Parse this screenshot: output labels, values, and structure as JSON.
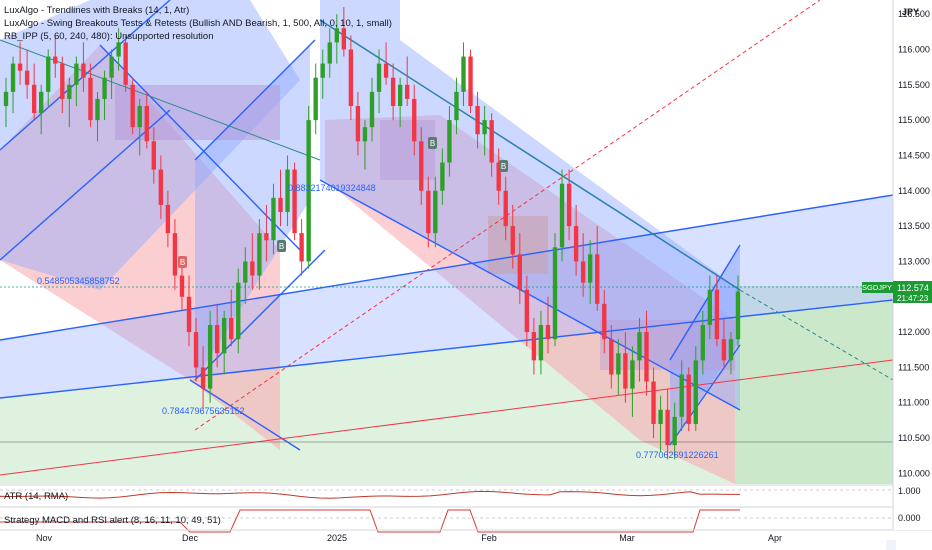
{
  "currency_label": "JPY",
  "symbol_tag": "SGDJPY",
  "last_price_label": "112.574",
  "countdown_label": "21:47:23",
  "indicators": [
    "LuxAlgo - Trendlines with Breaks (14, 1, Atr)",
    "LuxAlgo - Swing Breakouts Tests & Retests (Bullish AND Bearish, 1, 500, All, 0, 10, 1, small)",
    "RB_IPP (5, 60, 240, 480): Unsupported resolution"
  ],
  "fib_labels": {
    "a": "0.8832174019324848",
    "b": "0.548505345858752",
    "c": "0.784479675635152",
    "d": "0.777062691226261"
  },
  "atr_label": "ATR (14, RMA)",
  "atr_axis_label": "1.000",
  "strategy_label": "Strategy MACD and RSI alert (8, 16, 11, 10, 49, 51)",
  "strategy_axis_label": "0.000",
  "marker_labels": [
    "B",
    "B",
    "B",
    "B"
  ],
  "colors": {
    "up": "#089981",
    "up_candle": "#2ea02a",
    "down": "#f23645",
    "channel_blue": "#2962ff",
    "channel_fill": "#8fa8ff",
    "pink_fill": "#f7a5ad",
    "green_fill": "#b9e0b7",
    "tag_bg": "#1e9a34"
  },
  "chart_data": {
    "type": "candlestick",
    "title": "",
    "xlabel": "",
    "ylabel": "",
    "x_ticks": [
      "Nov",
      "Dec",
      "2025",
      "Feb",
      "Mar",
      "Apr"
    ],
    "y_ticks": [
      110.0,
      110.5,
      111.0,
      111.5,
      112.0,
      112.5,
      113.0,
      113.5,
      114.0,
      114.5,
      115.0,
      115.5,
      116.0,
      116.5
    ],
    "ylim": [
      109.85,
      116.7
    ],
    "grid": false,
    "last_price": 112.574,
    "series": [
      {
        "name": "",
        "ohlc": [
          [
            115.2,
            115.6,
            114.9,
            115.4
          ],
          [
            115.4,
            115.9,
            115.1,
            115.8
          ],
          [
            115.8,
            116.1,
            115.5,
            115.7
          ],
          [
            115.7,
            116.0,
            115.3,
            115.5
          ],
          [
            115.5,
            115.8,
            115.0,
            115.1
          ],
          [
            115.1,
            115.5,
            114.8,
            115.4
          ],
          [
            115.4,
            116.0,
            115.2,
            115.9
          ],
          [
            115.9,
            116.2,
            115.6,
            115.8
          ],
          [
            115.8,
            115.9,
            115.1,
            115.3
          ],
          [
            115.3,
            115.6,
            114.9,
            115.5
          ],
          [
            115.5,
            115.9,
            115.2,
            115.8
          ],
          [
            115.8,
            116.1,
            115.4,
            115.6
          ],
          [
            115.6,
            115.8,
            114.9,
            115.0
          ],
          [
            115.0,
            115.4,
            114.7,
            115.3
          ],
          [
            115.3,
            115.7,
            115.0,
            115.6
          ],
          [
            115.6,
            116.0,
            115.3,
            115.9
          ],
          [
            115.9,
            116.3,
            115.7,
            116.1
          ],
          [
            116.1,
            116.2,
            115.4,
            115.5
          ],
          [
            115.5,
            115.6,
            114.8,
            114.9
          ],
          [
            114.9,
            115.3,
            114.5,
            115.2
          ],
          [
            115.2,
            115.4,
            114.6,
            114.7
          ],
          [
            114.7,
            114.9,
            114.1,
            114.3
          ],
          [
            114.3,
            114.5,
            113.6,
            113.8
          ],
          [
            113.8,
            114.0,
            113.2,
            113.4
          ],
          [
            113.4,
            113.6,
            112.6,
            112.8
          ],
          [
            112.8,
            113.0,
            112.3,
            112.5
          ],
          [
            112.5,
            112.8,
            111.8,
            112.0
          ],
          [
            112.0,
            112.2,
            111.3,
            111.5
          ],
          [
            111.5,
            111.8,
            110.9,
            111.2
          ],
          [
            111.2,
            112.3,
            111.0,
            112.1
          ],
          [
            112.1,
            112.4,
            111.5,
            111.7
          ],
          [
            111.7,
            112.3,
            111.4,
            112.2
          ],
          [
            112.2,
            112.6,
            111.8,
            111.9
          ],
          [
            111.9,
            112.9,
            111.7,
            112.7
          ],
          [
            112.7,
            113.2,
            112.4,
            113.0
          ],
          [
            113.0,
            113.4,
            112.6,
            112.8
          ],
          [
            112.8,
            113.6,
            112.6,
            113.4
          ],
          [
            113.4,
            113.8,
            113.0,
            113.3
          ],
          [
            113.3,
            114.1,
            113.1,
            113.9
          ],
          [
            113.9,
            114.3,
            113.5,
            113.7
          ],
          [
            113.7,
            114.5,
            113.5,
            114.3
          ],
          [
            114.3,
            114.4,
            113.3,
            113.4
          ],
          [
            113.4,
            113.6,
            112.8,
            113.0
          ],
          [
            113.0,
            115.2,
            112.9,
            115.0
          ],
          [
            115.0,
            115.8,
            114.8,
            115.6
          ],
          [
            115.6,
            116.0,
            115.3,
            115.8
          ],
          [
            115.8,
            116.3,
            115.6,
            116.1
          ],
          [
            116.1,
            116.5,
            115.8,
            116.3
          ],
          [
            116.3,
            116.6,
            115.9,
            116.0
          ],
          [
            116.0,
            116.2,
            115.0,
            115.2
          ],
          [
            115.2,
            115.4,
            114.5,
            114.7
          ],
          [
            114.7,
            115.0,
            114.3,
            114.9
          ],
          [
            114.9,
            115.6,
            114.7,
            115.4
          ],
          [
            115.4,
            116.0,
            115.1,
            115.8
          ],
          [
            115.8,
            116.1,
            115.5,
            115.6
          ],
          [
            115.6,
            115.8,
            115.0,
            115.2
          ],
          [
            115.2,
            115.6,
            114.9,
            115.5
          ],
          [
            115.5,
            115.9,
            115.2,
            115.3
          ],
          [
            115.3,
            115.5,
            114.5,
            114.7
          ],
          [
            114.7,
            114.9,
            113.8,
            114.0
          ],
          [
            114.0,
            114.2,
            113.2,
            113.4
          ],
          [
            113.4,
            114.2,
            113.2,
            114.0
          ],
          [
            114.0,
            114.6,
            113.8,
            114.4
          ],
          [
            114.4,
            115.2,
            114.2,
            115.0
          ],
          [
            115.0,
            115.6,
            114.8,
            115.4
          ],
          [
            115.4,
            116.1,
            115.2,
            115.9
          ],
          [
            115.9,
            116.0,
            115.1,
            115.2
          ],
          [
            115.2,
            115.4,
            114.6,
            114.8
          ],
          [
            114.8,
            115.2,
            114.5,
            115.0
          ],
          [
            115.0,
            115.1,
            114.2,
            114.4
          ],
          [
            114.4,
            114.6,
            113.8,
            114.0
          ],
          [
            114.0,
            114.2,
            113.3,
            113.5
          ],
          [
            113.5,
            113.8,
            112.9,
            113.1
          ],
          [
            113.1,
            113.4,
            112.4,
            112.6
          ],
          [
            112.6,
            112.8,
            111.8,
            112.0
          ],
          [
            112.0,
            112.2,
            111.4,
            111.6
          ],
          [
            111.6,
            112.3,
            111.4,
            112.1
          ],
          [
            112.1,
            112.5,
            111.7,
            111.9
          ],
          [
            111.9,
            113.4,
            111.8,
            113.2
          ],
          [
            113.2,
            114.3,
            113.0,
            114.1
          ],
          [
            114.1,
            114.3,
            113.3,
            113.5
          ],
          [
            113.5,
            113.8,
            112.8,
            113.0
          ],
          [
            113.0,
            113.4,
            112.5,
            112.7
          ],
          [
            112.7,
            113.3,
            112.4,
            113.1
          ],
          [
            113.1,
            113.5,
            112.3,
            112.4
          ],
          [
            112.4,
            112.6,
            111.7,
            111.9
          ],
          [
            111.9,
            112.1,
            111.2,
            111.4
          ],
          [
            111.4,
            111.9,
            111.1,
            111.7
          ],
          [
            111.7,
            112.0,
            111.0,
            111.2
          ],
          [
            111.2,
            111.8,
            110.8,
            111.6
          ],
          [
            111.6,
            112.2,
            111.3,
            112.0
          ],
          [
            112.0,
            112.3,
            111.1,
            111.3
          ],
          [
            111.3,
            111.5,
            110.5,
            110.7
          ],
          [
            110.7,
            111.1,
            110.3,
            110.9
          ],
          [
            110.9,
            111.2,
            110.2,
            110.4
          ],
          [
            110.4,
            111.0,
            110.2,
            110.8
          ],
          [
            110.8,
            111.6,
            110.6,
            111.4
          ],
          [
            111.4,
            111.5,
            110.6,
            110.7
          ],
          [
            110.7,
            111.8,
            110.6,
            111.6
          ],
          [
            111.6,
            112.3,
            111.4,
            112.1
          ],
          [
            112.1,
            112.8,
            111.9,
            112.6
          ],
          [
            112.6,
            112.8,
            111.8,
            111.9
          ],
          [
            111.9,
            112.2,
            111.5,
            111.6
          ],
          [
            111.6,
            112.0,
            111.4,
            111.9
          ],
          [
            111.9,
            112.8,
            111.8,
            112.574
          ]
        ]
      }
    ]
  }
}
